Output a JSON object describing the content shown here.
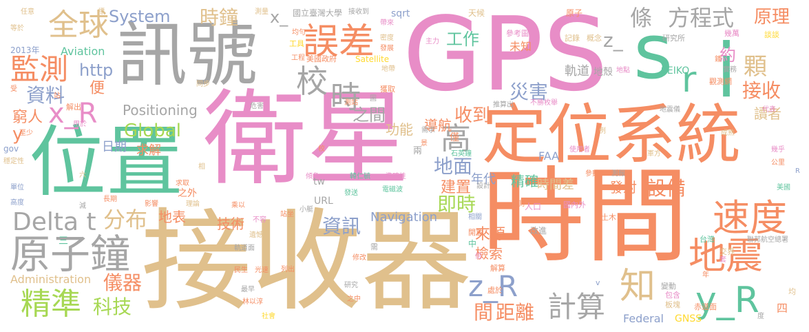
{
  "palette": {
    "pink": "#e88dc7",
    "orange": "#f58d63",
    "tan": "#e0c08c",
    "teal": "#5fc49e",
    "gray": "#a6a6a6",
    "blue": "#8da0cb",
    "lime": "#a7d854",
    "yellow": "#ffd92f"
  },
  "words": [
    {
      "text": "衛星",
      "color": "pink"
    },
    {
      "text": "接收器",
      "color": "tan"
    },
    {
      "text": "時間",
      "color": "orange"
    },
    {
      "text": "GPS",
      "color": "pink"
    },
    {
      "text": "位置",
      "color": "teal"
    },
    {
      "text": "定位系統",
      "color": "orange"
    },
    {
      "text": "訊號",
      "color": "gray"
    },
    {
      "text": "s",
      "color": "teal"
    },
    {
      "text": "i",
      "color": "teal"
    },
    {
      "text": "r",
      "color": "teal"
    },
    {
      "text": "原子鐘",
      "color": "gray"
    },
    {
      "text": "地震",
      "color": "orange"
    },
    {
      "text": "速度",
      "color": "orange"
    },
    {
      "text": "誤差",
      "color": "orange"
    },
    {
      "text": "全球",
      "color": "tan"
    },
    {
      "text": "校",
      "color": "gray"
    },
    {
      "text": "時",
      "color": "gray"
    },
    {
      "text": "監測",
      "color": "orange"
    },
    {
      "text": "精準",
      "color": "lime"
    },
    {
      "text": "計算",
      "color": "gray"
    },
    {
      "text": "y_R",
      "color": "teal"
    },
    {
      "text": "z_R",
      "color": "blue"
    },
    {
      "text": "x_R",
      "color": "pink"
    },
    {
      "text": "Delta t",
      "color": "gray"
    },
    {
      "text": "知",
      "color": "tan"
    },
    {
      "text": "高",
      "color": "gray"
    },
    {
      "text": "條",
      "color": "gray"
    },
    {
      "text": "方程式",
      "color": "gray"
    },
    {
      "text": "原理",
      "color": "orange"
    },
    {
      "text": "顆",
      "color": "tan"
    },
    {
      "text": "接收",
      "color": "orange"
    },
    {
      "text": "約",
      "color": "pink"
    },
    {
      "text": "資料",
      "color": "blue"
    },
    {
      "text": "時鐘",
      "color": "tan"
    },
    {
      "text": "分布",
      "color": "tan"
    },
    {
      "text": "科技",
      "color": "lime"
    },
    {
      "text": "儀器",
      "color": "orange"
    },
    {
      "text": "災害",
      "color": "blue"
    },
    {
      "text": "收到",
      "color": "orange"
    },
    {
      "text": "地面",
      "color": "blue"
    },
    {
      "text": "即時",
      "color": "lime"
    },
    {
      "text": "資訊",
      "color": "blue"
    },
    {
      "text": "設備",
      "color": "orange"
    },
    {
      "text": "距離",
      "color": "orange"
    },
    {
      "text": "間",
      "color": "orange"
    },
    {
      "text": "Global",
      "color": "lime"
    },
    {
      "text": "System",
      "color": "blue"
    },
    {
      "text": "http",
      "color": "blue"
    },
    {
      "text": "工作",
      "color": "teal"
    },
    {
      "text": "z_",
      "color": "gray"
    },
    {
      "text": "x_",
      "color": "gray"
    },
    {
      "text": "Positioning",
      "color": "gray"
    },
    {
      "text": "導航",
      "color": "orange"
    },
    {
      "text": "功能",
      "color": "tan"
    },
    {
      "text": "建置",
      "color": "orange"
    },
    {
      "text": "精確",
      "color": "teal"
    },
    {
      "text": "時間差",
      "color": "tan"
    },
    {
      "text": "發射",
      "color": "orange"
    },
    {
      "text": "年代",
      "color": "blue"
    },
    {
      "text": "之間",
      "color": "gray"
    },
    {
      "text": "便",
      "color": "orange"
    },
    {
      "text": "窮人",
      "color": "orange"
    },
    {
      "text": "y",
      "color": "orange"
    },
    {
      "text": "軌道",
      "color": "gray"
    },
    {
      "text": "地殼",
      "color": "gray"
    },
    {
      "text": "讀者",
      "color": "tan"
    },
    {
      "text": "日期",
      "color": "blue"
    },
    {
      "text": "求解",
      "color": "orange"
    },
    {
      "text": "技術",
      "color": "orange"
    },
    {
      "text": "地表",
      "color": "orange"
    },
    {
      "text": "來源",
      "color": "orange"
    },
    {
      "text": "檢索",
      "color": "orange"
    },
    {
      "text": "Navigation",
      "color": "blue"
    },
    {
      "text": "Aviation",
      "color": "teal"
    },
    {
      "text": "Administration",
      "color": "tan"
    },
    {
      "text": "Federal",
      "color": "blue"
    },
    {
      "text": "Satellite",
      "color": "yellow"
    },
    {
      "text": "sqrt",
      "color": "blue"
    },
    {
      "text": "FAA",
      "color": "blue"
    },
    {
      "text": "GNSS",
      "color": "yellow"
    },
    {
      "text": "URL",
      "color": "gray"
    },
    {
      "text": "SEIKO",
      "color": "teal"
    },
    {
      "text": "gov",
      "color": "blue"
    },
    {
      "text": "tw",
      "color": "gray"
    },
    {
      "text": "2013年",
      "color": "blue"
    },
    {
      "text": "國立臺灣大學",
      "color": "gray"
    },
    {
      "text": "接收到",
      "color": "gray"
    },
    {
      "text": "天候",
      "color": "tan"
    },
    {
      "text": "原子",
      "color": "orange"
    },
    {
      "text": "參考圖",
      "color": "pink"
    },
    {
      "text": "記錄",
      "color": "tan"
    },
    {
      "text": "概念",
      "color": "tan"
    },
    {
      "text": "研究所",
      "color": "gray"
    },
    {
      "text": "幾萬",
      "color": "pink"
    },
    {
      "text": "談談",
      "color": "yellow"
    },
    {
      "text": "未知",
      "color": "orange"
    },
    {
      "text": "主力",
      "color": "pink"
    },
    {
      "text": "工程",
      "color": "orange"
    },
    {
      "text": "美國政府",
      "color": "orange"
    },
    {
      "text": "發展",
      "color": "orange"
    },
    {
      "text": "密度",
      "color": "tan"
    },
    {
      "text": "帶來",
      "color": "pink"
    },
    {
      "text": "均勻",
      "color": "orange"
    },
    {
      "text": "工具",
      "color": "yellow"
    },
    {
      "text": "測量",
      "color": "tan"
    },
    {
      "text": "標",
      "color": "tan"
    },
    {
      "text": "任意",
      "color": "tan"
    },
    {
      "text": "等於",
      "color": "tan"
    },
    {
      "text": "地帶",
      "color": "tan"
    },
    {
      "text": "獲取",
      "color": "orange"
    },
    {
      "text": "觀測網",
      "color": "orange"
    },
    {
      "text": "實務",
      "color": "gray"
    },
    {
      "text": "地點",
      "color": "pink"
    },
    {
      "text": "鍾",
      "color": "orange"
    },
    {
      "text": "同步",
      "color": "tan"
    },
    {
      "text": "站",
      "color": "orange"
    },
    {
      "text": "受",
      "color": "orange"
    },
    {
      "text": "解出",
      "color": "orange"
    },
    {
      "text": "用於",
      "color": "pink"
    },
    {
      "text": "至少",
      "color": "orange"
    },
    {
      "text": "穩定性",
      "color": "tan"
    },
    {
      "text": "危害",
      "color": "gray"
    },
    {
      "text": "測站",
      "color": "orange"
    },
    {
      "text": "圖",
      "color": "gray"
    },
    {
      "text": "推算出",
      "color": "gray"
    },
    {
      "text": "不勝枚舉",
      "color": "pink"
    },
    {
      "text": "地震儀",
      "color": "gray"
    },
    {
      "text": "成熟",
      "color": "tan"
    },
    {
      "text": "代表",
      "color": "pink"
    },
    {
      "text": "例",
      "color": "tan"
    },
    {
      "text": "使用者",
      "color": "pink"
    },
    {
      "text": "軍方",
      "color": "tan"
    },
    {
      "text": "幾乎",
      "color": "pink"
    },
    {
      "text": "公里",
      "color": "orange"
    },
    {
      "text": "參數",
      "color": "orange"
    },
    {
      "text": "測報",
      "color": "gray"
    },
    {
      "text": "石英鐘",
      "color": "teal"
    },
    {
      "text": "兩",
      "color": "gray"
    },
    {
      "text": "僅",
      "color": "orange"
    },
    {
      "text": "景",
      "color": "orange"
    },
    {
      "text": "需求",
      "color": "gray"
    },
    {
      "text": "韓仁毓",
      "color": "teal"
    },
    {
      "text": "準確性",
      "color": "pink"
    },
    {
      "text": "電磁波",
      "color": "teal"
    },
    {
      "text": "傾角",
      "color": "pink"
    },
    {
      "text": "相",
      "color": "tan"
    },
    {
      "text": "求取",
      "color": "orange"
    },
    {
      "text": "長期",
      "color": "orange"
    },
    {
      "text": "六",
      "color": "tan"
    },
    {
      "text": "單位",
      "color": "blue"
    },
    {
      "text": "高度",
      "color": "blue"
    },
    {
      "text": "減",
      "color": "gray"
    },
    {
      "text": "影響",
      "color": "orange"
    },
    {
      "text": "理論",
      "color": "tan"
    },
    {
      "text": "乘以",
      "color": "orange"
    },
    {
      "text": "不容",
      "color": "pink"
    },
    {
      "text": "站坐",
      "color": "orange"
    },
    {
      "text": "遺憾",
      "color": "tan"
    },
    {
      "text": "軌道面",
      "color": "gray"
    },
    {
      "text": "民生",
      "color": "orange"
    },
    {
      "text": "光速",
      "color": "orange"
    },
    {
      "text": "最早",
      "color": "gray"
    },
    {
      "text": "林以淳",
      "color": "orange"
    },
    {
      "text": "社會",
      "color": "yellow"
    },
    {
      "text": "列出",
      "color": "orange"
    },
    {
      "text": "修改",
      "color": "orange"
    },
    {
      "text": "需",
      "color": "gray"
    },
    {
      "text": "小艇",
      "color": "gray"
    },
    {
      "text": "發送",
      "color": "teal"
    },
    {
      "text": "設計",
      "color": "gray"
    },
    {
      "text": "倍",
      "color": "pink"
    },
    {
      "text": "開放",
      "color": "orange"
    },
    {
      "text": "中",
      "color": "teal"
    },
    {
      "text": "解算",
      "color": "orange"
    },
    {
      "text": "處於",
      "color": "orange"
    },
    {
      "text": "之中",
      "color": "orange"
    },
    {
      "text": "研究",
      "color": "gray"
    },
    {
      "text": "相關",
      "color": "blue"
    },
    {
      "text": "人口",
      "color": "pink"
    },
    {
      "text": "改進",
      "color": "gray"
    },
    {
      "text": "國內外",
      "color": "pink"
    },
    {
      "text": "土木",
      "color": "orange"
    },
    {
      "text": "台灣",
      "color": "teal"
    },
    {
      "text": "交界",
      "color": "tan"
    },
    {
      "text": "套",
      "color": "pink"
    },
    {
      "text": "聯邦航空總署",
      "color": "gray"
    },
    {
      "text": "美國",
      "color": "teal"
    },
    {
      "text": "變動",
      "color": "gray"
    },
    {
      "text": "包含",
      "color": "pink"
    },
    {
      "text": "板塊",
      "color": "tan"
    },
    {
      "text": "赤道面",
      "color": "orange"
    },
    {
      "text": "均",
      "color": "tan"
    },
    {
      "text": "四",
      "color": "orange"
    },
    {
      "text": "度",
      "color": "gray"
    },
    {
      "text": "年",
      "color": "orange"
    },
    {
      "text": "v",
      "color": "blue"
    },
    {
      "text": "R",
      "color": "blue"
    },
    {
      "text": "之外",
      "color": "orange"
    },
    {
      "text": "測",
      "color": "orange"
    },
    {
      "text": "三",
      "color": "teal"
    },
    {
      "text": "校",
      "color": "orange"
    }
  ]
}
